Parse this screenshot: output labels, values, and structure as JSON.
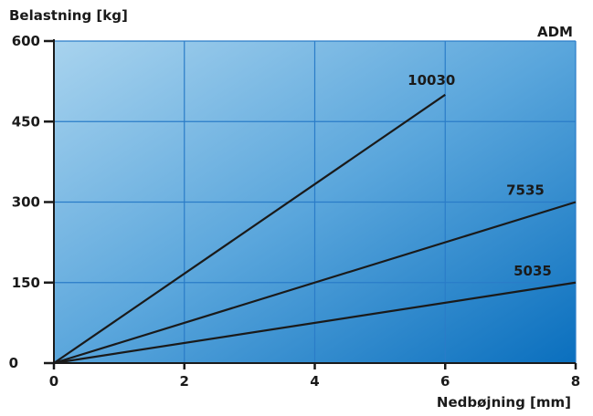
{
  "chart_data": {
    "type": "line",
    "title": "ADM",
    "xlabel": "Nedbøjning [mm]",
    "ylabel": "Belastning [kg]",
    "xlim": [
      0,
      8
    ],
    "ylim": [
      0,
      600
    ],
    "x_ticks": [
      "0",
      "2",
      "4",
      "6",
      "8"
    ],
    "y_ticks": [
      "0",
      "150",
      "300",
      "450",
      "600"
    ],
    "grid": true,
    "series": [
      {
        "name": "10030",
        "x": [
          0,
          6
        ],
        "y": [
          0,
          500
        ]
      },
      {
        "name": "7535",
        "x": [
          0,
          8
        ],
        "y": [
          0,
          300
        ]
      },
      {
        "name": "5035",
        "x": [
          0,
          8
        ],
        "y": [
          0,
          150
        ]
      }
    ],
    "colors": {
      "bg_light": "#a8d3ee",
      "bg_mid": "#5aa6dc",
      "bg_dark": "#0a6fbe",
      "grid": "#2a7cc8",
      "line": "#1a1a1a"
    }
  }
}
